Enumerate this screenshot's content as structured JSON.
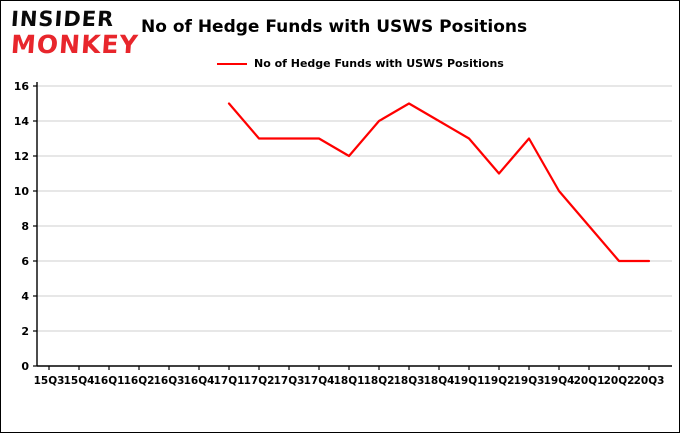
{
  "logo": {
    "line1": "INSIDER",
    "line2": "MONKEY",
    "brand_red": "#e8262c"
  },
  "title": "No of Hedge Funds with USWS Positions",
  "legend": {
    "label": "No of Hedge Funds with USWS Positions",
    "color": "#ff0000"
  },
  "chart_data": {
    "type": "line",
    "title": "No of Hedge Funds with USWS Positions",
    "categories": [
      "15Q3",
      "15Q4",
      "16Q1",
      "16Q2",
      "16Q3",
      "16Q4",
      "17Q1",
      "17Q2",
      "17Q3",
      "17Q4",
      "18Q1",
      "18Q2",
      "18Q3",
      "18Q4",
      "19Q1",
      "19Q2",
      "19Q3",
      "19Q4",
      "20Q1",
      "20Q2",
      "20Q3"
    ],
    "series": [
      {
        "name": "No of Hedge Funds with USWS Positions",
        "values": [
          null,
          null,
          null,
          null,
          null,
          null,
          15,
          13,
          13,
          13,
          12,
          14,
          15,
          14,
          13,
          11,
          13,
          10,
          8,
          6,
          6
        ]
      }
    ],
    "xlabel": "",
    "ylabel": "",
    "ylim": [
      0,
      16
    ],
    "yticks": [
      0,
      2,
      4,
      6,
      8,
      10,
      12,
      14,
      16
    ],
    "grid": true,
    "grid_color": "#cfcfcf",
    "axis_color": "#000000",
    "line_color": "#ff0000",
    "legend_position": "top",
    "tick_label_color": "#000000"
  }
}
